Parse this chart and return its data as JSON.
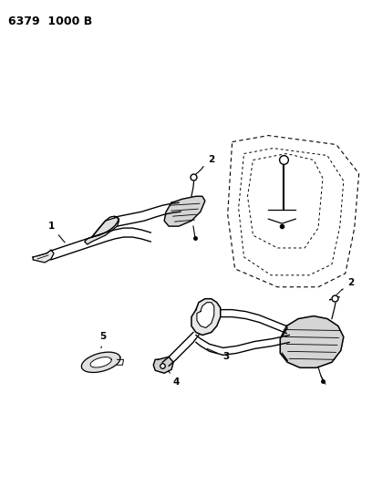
{
  "title": "6379  1000 B",
  "background_color": "#ffffff",
  "line_color": "#000000",
  "title_fontsize": 9,
  "figsize": [
    4.08,
    5.33
  ],
  "dpi": 100
}
